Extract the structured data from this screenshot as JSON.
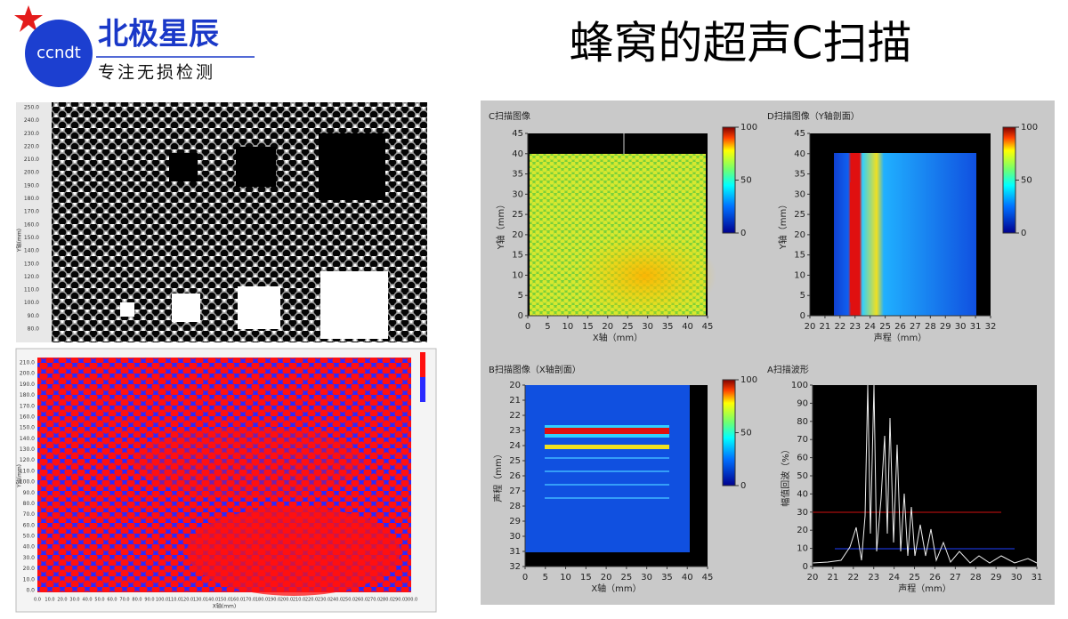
{
  "logo": {
    "badge": "ccndt",
    "name": "北极星辰",
    "slogan": "专注无损检测"
  },
  "title": "蜂窝的超声C扫描",
  "photo_top": {
    "y_label": "Y轴(mm)",
    "yticks": [
      "250.0",
      "240.0",
      "230.0",
      "220.0",
      "210.0",
      "200.0",
      "190.0",
      "180.0",
      "170.0",
      "160.0",
      "150.0",
      "140.0",
      "130.0",
      "120.0",
      "110.0",
      "100.0",
      "90.0",
      "80.0"
    ]
  },
  "photo_bottom": {
    "y_label": "Y轴(mm)",
    "x_label": "X轴(mm)",
    "yticks": [
      "210.0",
      "200.0",
      "190.0",
      "180.0",
      "170.0",
      "160.0",
      "150.0",
      "140.0",
      "130.0",
      "120.0",
      "110.0",
      "100.0",
      "90.0",
      "80.0",
      "70.0",
      "60.0",
      "50.0",
      "40.0",
      "30.0",
      "20.0",
      "10.0",
      "0.0"
    ],
    "xticks": [
      "0.0",
      "10.0",
      "20.0",
      "30.0",
      "40.0",
      "50.0",
      "60.0",
      "70.0",
      "80.0",
      "90.0",
      "100.0",
      "110.0",
      "120.0",
      "130.0",
      "140.0",
      "150.0",
      "160.0",
      "170.0",
      "180.0",
      "190.0",
      "200.0",
      "210.0",
      "220.0",
      "230.0",
      "240.0",
      "250.0",
      "260.0",
      "270.0",
      "280.0",
      "290.0",
      "300.0"
    ]
  },
  "panels": [
    {
      "title": "C扫描图像",
      "x_label": "X轴（mm）",
      "y_label": "Y轴（mm）",
      "xticks": [
        0,
        5,
        10,
        15,
        20,
        25,
        30,
        35,
        40,
        45
      ],
      "yticks": [
        0,
        5,
        10,
        15,
        20,
        25,
        30,
        35,
        40,
        45
      ],
      "colorbar_ticks": [
        0,
        50,
        100
      ]
    },
    {
      "title": "D扫描图像（Y轴剖面）",
      "x_label": "声程（mm）",
      "y_label": "Y轴（mm）",
      "xticks": [
        20,
        21,
        22,
        23,
        24,
        25,
        26,
        27,
        28,
        29,
        30,
        31,
        32
      ],
      "yticks": [
        0,
        5,
        10,
        15,
        20,
        25,
        30,
        35,
        40,
        45
      ],
      "colorbar_ticks": [
        0,
        50,
        100
      ]
    },
    {
      "title": "B扫描图像（X轴剖面）",
      "x_label": "X轴（mm）",
      "y_label": "声程（mm）",
      "xticks": [
        0,
        5,
        10,
        15,
        20,
        25,
        30,
        35,
        40,
        45
      ],
      "yticks": [
        20,
        21,
        22,
        23,
        24,
        25,
        26,
        27,
        28,
        29,
        30,
        31,
        32
      ],
      "colorbar_ticks": [
        0,
        50,
        100
      ]
    },
    {
      "title": "A扫描波形",
      "x_label": "声程（mm）",
      "y_label": "幅值回波（%）",
      "xticks": [
        20,
        21,
        22,
        23,
        24,
        25,
        26,
        27,
        28,
        29,
        30,
        31
      ],
      "yticks": [
        0,
        10,
        20,
        30,
        40,
        50,
        60,
        70,
        80,
        90,
        100
      ]
    }
  ]
}
